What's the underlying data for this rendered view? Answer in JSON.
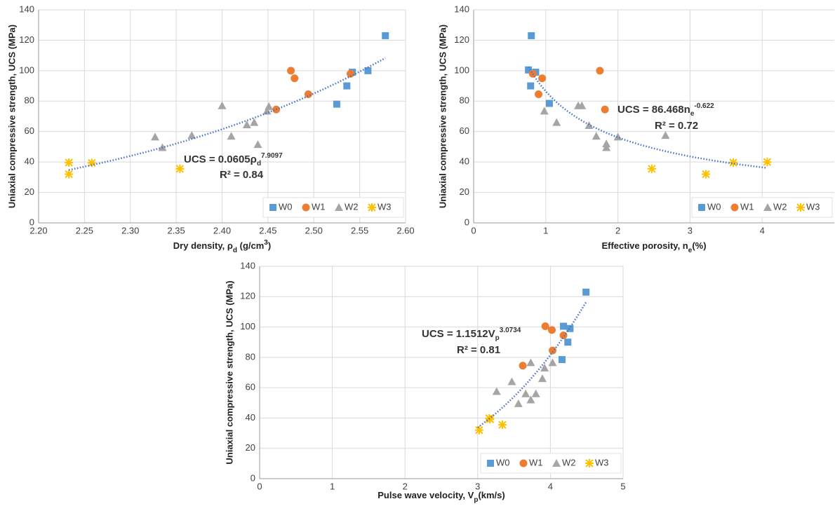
{
  "chart_data": [
    {
      "type": "scatter",
      "ylabel": "Uniaxial compressive strength, UCS (MPa)",
      "xlabel_parts": [
        {
          "text": "Dry density, ρ"
        },
        {
          "text": "d",
          "shift": "sub"
        },
        {
          "text": " (g/cm"
        },
        {
          "text": "3",
          "shift": "super"
        },
        {
          "text": ")"
        }
      ],
      "xlim": [
        2.2,
        2.6
      ],
      "xticks": [
        {
          "value": 2.2,
          "label": "2.20"
        },
        {
          "value": 2.25,
          "label": "2.25"
        },
        {
          "value": 2.3,
          "label": "2.30"
        },
        {
          "value": 2.35,
          "label": "2.35"
        },
        {
          "value": 2.4,
          "label": "2.40"
        },
        {
          "value": 2.45,
          "label": "2.45"
        },
        {
          "value": 2.5,
          "label": "2.50"
        },
        {
          "value": 2.55,
          "label": "2.55"
        },
        {
          "value": 2.6,
          "label": "2.60"
        }
      ],
      "ylim": [
        0,
        140
      ],
      "yticks": [
        0,
        20,
        40,
        60,
        80,
        100,
        120,
        140
      ],
      "grid": true,
      "legend": "lower right",
      "series": [
        {
          "name": "W0",
          "color": "#5b9bd5",
          "marker": "square",
          "x": [
            2.578,
            2.559,
            2.542,
            2.536,
            2.525
          ],
          "values": [
            123,
            100,
            99,
            90,
            78
          ]
        },
        {
          "name": "W1",
          "color": "#ed7d31",
          "marker": "circle",
          "x": [
            2.475,
            2.479,
            2.54,
            2.494,
            2.459
          ],
          "values": [
            100,
            95,
            98,
            84.5,
            74.5
          ]
        },
        {
          "name": "W2",
          "color": "#a5a5a5",
          "marker": "triangle",
          "x": [
            2.327,
            2.335,
            2.367,
            2.4,
            2.41,
            2.427,
            2.435,
            2.439,
            2.451,
            2.449
          ],
          "values": [
            56.5,
            49.5,
            57.5,
            77,
            57,
            64.5,
            66,
            51.5,
            76.5,
            73.5
          ]
        },
        {
          "name": "W3",
          "color": "#ffc000",
          "marker": "star",
          "x": [
            2.233,
            2.233,
            2.258,
            2.354
          ],
          "values": [
            39.6,
            32,
            39.4,
            35.5
          ]
        }
      ],
      "trendline": {
        "kind": "power",
        "a": 0.0605,
        "b": 7.9097,
        "xlim": [
          2.233,
          2.578
        ],
        "color": "#4472c4"
      },
      "equation_parts": [
        {
          "text": "UCS = 0.0605ρ"
        },
        {
          "text": "d",
          "shift": "sub"
        },
        {
          "text": "7.9097",
          "shift": "super"
        }
      ],
      "r2_label": "R² = 0.84"
    },
    {
      "type": "scatter",
      "ylabel": "Uniaxial compressive strength, UCS (MPa)",
      "xlabel_parts": [
        {
          "text": "Effective porosity, n"
        },
        {
          "text": "e",
          "shift": "sub"
        },
        {
          "text": "(%)"
        }
      ],
      "xlim": [
        0,
        5
      ],
      "xticks": [
        0,
        1,
        2,
        3,
        4
      ],
      "ylim": [
        0,
        140
      ],
      "yticks": [
        0,
        20,
        40,
        60,
        80,
        100,
        120,
        140
      ],
      "grid": true,
      "legend": "lower right",
      "series": [
        {
          "name": "W0",
          "color": "#5b9bd5",
          "marker": "square",
          "x": [
            0.8,
            0.76,
            0.86,
            0.79,
            1.05
          ],
          "values": [
            123,
            100.5,
            99,
            90,
            78.5
          ]
        },
        {
          "name": "W1",
          "color": "#ed7d31",
          "marker": "circle",
          "x": [
            0.82,
            0.95,
            0.9,
            1.75,
            1.82
          ],
          "values": [
            98,
            95,
            84.5,
            100,
            74.5
          ]
        },
        {
          "name": "W2",
          "color": "#a5a5a5",
          "marker": "triangle",
          "x": [
            0.98,
            1.15,
            1.45,
            1.5,
            1.6,
            1.7,
            1.84,
            1.84,
            2.0,
            2.66
          ],
          "values": [
            73.5,
            66,
            77,
            77,
            64,
            57,
            52,
            49.5,
            56.5,
            57.5
          ]
        },
        {
          "name": "W3",
          "color": "#ffc000",
          "marker": "star",
          "x": [
            2.47,
            3.22,
            3.6,
            4.07
          ],
          "values": [
            35.5,
            32,
            39.6,
            40
          ]
        }
      ],
      "trendline": {
        "kind": "power",
        "a": 86.468,
        "b": -0.622,
        "xlim": [
          0.76,
          4.07
        ],
        "color": "#4472c4"
      },
      "equation_parts": [
        {
          "text": "UCS = 86.468n"
        },
        {
          "text": "e",
          "shift": "sub"
        },
        {
          "text": "-0.622",
          "shift": "super"
        }
      ],
      "r2_label": "R² = 0.72"
    },
    {
      "type": "scatter",
      "ylabel": "Uniaxial compressive strength, UCS (MPa)",
      "xlabel_parts": [
        {
          "text": "Pulse wave velocity, V"
        },
        {
          "text": "p",
          "shift": "sub"
        },
        {
          "text": "(km/s)"
        }
      ],
      "xlim": [
        0,
        5
      ],
      "xticks": [
        0,
        1,
        2,
        3,
        4,
        5
      ],
      "ylim": [
        0,
        140
      ],
      "yticks": [
        0,
        20,
        40,
        60,
        80,
        100,
        120,
        140
      ],
      "grid": true,
      "legend": "lower right",
      "series": [
        {
          "name": "W0",
          "color": "#5b9bd5",
          "marker": "square",
          "x": [
            4.49,
            4.18,
            4.27,
            4.24,
            4.16
          ],
          "values": [
            123,
            100.5,
            99,
            90,
            78.5
          ]
        },
        {
          "name": "W1",
          "color": "#ed7d31",
          "marker": "circle",
          "x": [
            3.93,
            4.02,
            4.18,
            4.03,
            3.62
          ],
          "values": [
            100.5,
            98,
            94.5,
            84.5,
            74.5
          ]
        },
        {
          "name": "W2",
          "color": "#a5a5a5",
          "marker": "triangle",
          "x": [
            3.73,
            4.03,
            3.92,
            3.89,
            3.47,
            3.26,
            3.66,
            3.8,
            3.73,
            3.56
          ],
          "values": [
            76.5,
            76.5,
            73,
            66,
            64,
            57.5,
            56,
            56,
            52,
            49.5
          ]
        },
        {
          "name": "W3",
          "color": "#ffc000",
          "marker": "star",
          "x": [
            3.02,
            3.16,
            3.34,
            3.17
          ],
          "values": [
            32,
            39.8,
            35.5,
            39.2
          ]
        }
      ],
      "trendline": {
        "kind": "power",
        "a": 1.1512,
        "b": 3.0734,
        "xlim": [
          3.0,
          4.5
        ],
        "color": "#4472c4"
      },
      "equation_parts": [
        {
          "text": "UCS = 1.1512V"
        },
        {
          "text": "p",
          "shift": "sub"
        },
        {
          "text": "3.0734",
          "shift": "super"
        }
      ],
      "r2_label": "R² = 0.81"
    }
  ]
}
